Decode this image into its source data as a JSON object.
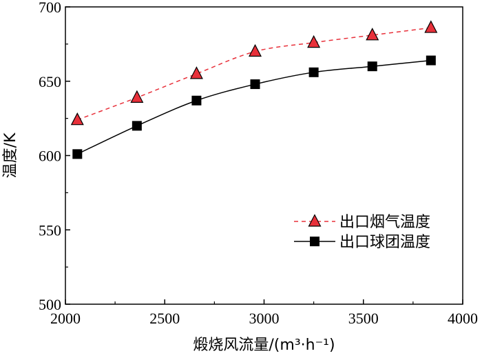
{
  "chart_data": {
    "type": "line",
    "title": "",
    "xlabel": "煅烧风流量/(m³·h⁻¹)",
    "ylabel": "温度/K",
    "xlim": [
      2000,
      4000
    ],
    "ylim": [
      500,
      700
    ],
    "xticks": [
      2000,
      2500,
      3000,
      3500,
      4000
    ],
    "yticks": [
      500,
      550,
      600,
      650,
      700
    ],
    "legend_position": "lower-right",
    "grid": false,
    "series": [
      {
        "name": "出口烟气温度",
        "color": "#e8303a",
        "marker": "triangle",
        "line_style": "dashed",
        "x": [
          2060,
          2360,
          2660,
          2955,
          3250,
          3545,
          3840
        ],
        "values": [
          624,
          639,
          655,
          670,
          676,
          681,
          686
        ]
      },
      {
        "name": "出口球团温度",
        "color": "#000000",
        "marker": "square",
        "line_style": "solid",
        "x": [
          2060,
          2360,
          2660,
          2955,
          3250,
          3545,
          3840
        ],
        "values": [
          601,
          620,
          637,
          648,
          656,
          660,
          664
        ]
      }
    ]
  }
}
